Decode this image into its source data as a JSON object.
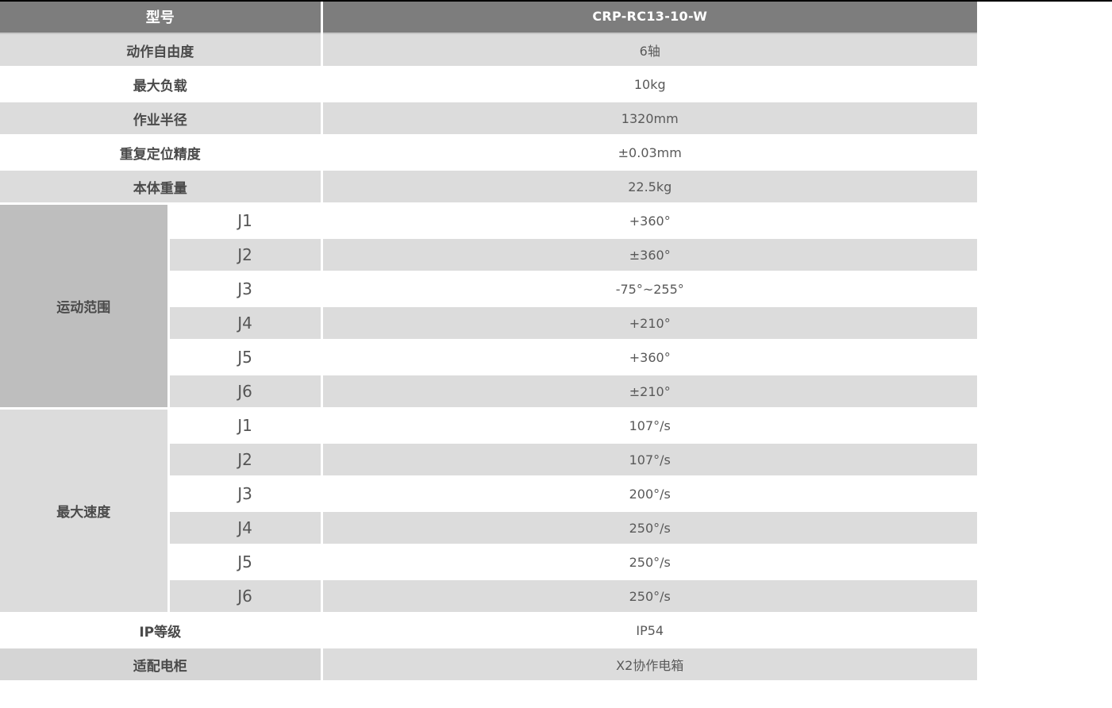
{
  "header": {
    "model_label": "型号",
    "model_value": "CRP-RC13-10-W"
  },
  "specs": [
    {
      "label": "动作自由度",
      "value": "6轴"
    },
    {
      "label": "最大负载",
      "value": "10kg"
    },
    {
      "label": "作业半径",
      "value": "1320mm"
    },
    {
      "label": "重复定位精度",
      "value": "±0.03mm"
    },
    {
      "label": "本体重量",
      "value": "22.5kg"
    }
  ],
  "motion_range": {
    "label": "运动范围",
    "rows": [
      {
        "joint": "J1",
        "value": "+360°"
      },
      {
        "joint": "J2",
        "value": "±360°"
      },
      {
        "joint": "J3",
        "value": "-75°~255°"
      },
      {
        "joint": "J4",
        "value": "+210°"
      },
      {
        "joint": "J5",
        "value": "+360°"
      },
      {
        "joint": "J6",
        "value": "±210°"
      }
    ]
  },
  "max_speed": {
    "label": "最大速度",
    "rows": [
      {
        "joint": "J1",
        "value": "107°/s"
      },
      {
        "joint": "J2",
        "value": "107°/s"
      },
      {
        "joint": "J3",
        "value": "200°/s"
      },
      {
        "joint": "J4",
        "value": "250°/s"
      },
      {
        "joint": "J5",
        "value": "250°/s"
      },
      {
        "joint": "J6",
        "value": "250°/s"
      }
    ]
  },
  "footer_specs": [
    {
      "label": "IP等级",
      "value": "IP54"
    },
    {
      "label": "适配电柜",
      "value": "X2协作电箱"
    }
  ],
  "colors": {
    "header_bg": "#7d7d7d",
    "header_text": "#ffffff",
    "row_gray": "#dcdcdc",
    "row_white": "#ffffff",
    "section_range_bg": "#bebebe",
    "section_speed_bg": "#dcdcdc",
    "cabinet_label_bg": "#d5d5d5",
    "label_text": "#4a4a4a",
    "value_text": "#595959",
    "top_line": "#000000"
  }
}
